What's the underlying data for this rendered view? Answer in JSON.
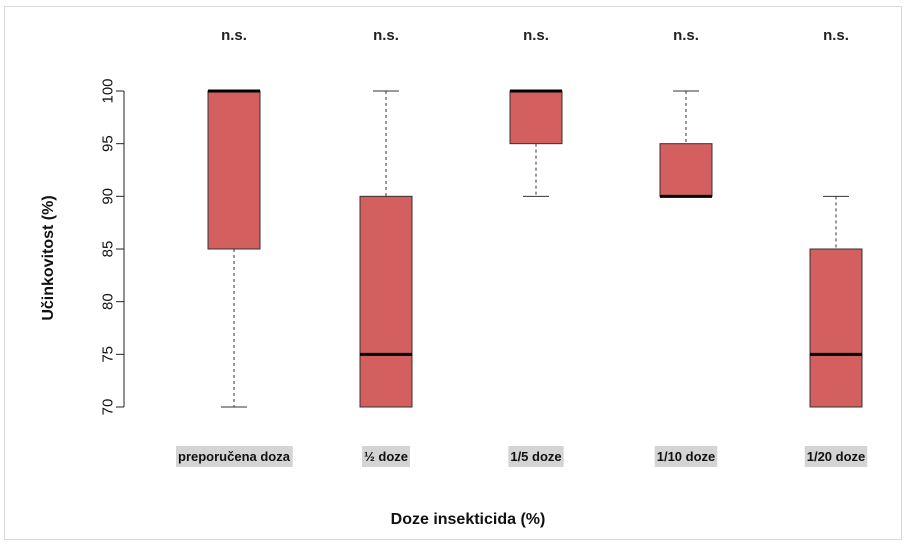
{
  "chart_data": {
    "type": "box",
    "xlabel": "Doze insekticida (%)",
    "ylabel": "Učinkovitost (%)",
    "ylim": [
      70,
      100
    ],
    "yticks": [
      70,
      75,
      80,
      85,
      90,
      95,
      100
    ],
    "categories": [
      "preporučena  doza",
      "½ doze",
      "1/5 doze",
      "1/10 doze",
      "1/20 doze"
    ],
    "significance": [
      "n.s.",
      "n.s.",
      "n.s.",
      "n.s.",
      "n.s."
    ],
    "boxes": [
      {
        "whisker_low": 70,
        "q1": 85,
        "median": 100,
        "q3": 100,
        "whisker_high": 100
      },
      {
        "whisker_low": 70,
        "q1": 70,
        "median": 75,
        "q3": 90,
        "whisker_high": 100
      },
      {
        "whisker_low": 90,
        "q1": 95,
        "median": 100,
        "q3": 100,
        "whisker_high": 100
      },
      {
        "whisker_low": 90,
        "q1": 90,
        "median": 90,
        "q3": 95,
        "whisker_high": 100
      },
      {
        "whisker_low": 70,
        "q1": 70,
        "median": 75,
        "q3": 85,
        "whisker_high": 90
      }
    ],
    "box_color": "#d35f5f",
    "label_background": "#d4d4d4"
  }
}
